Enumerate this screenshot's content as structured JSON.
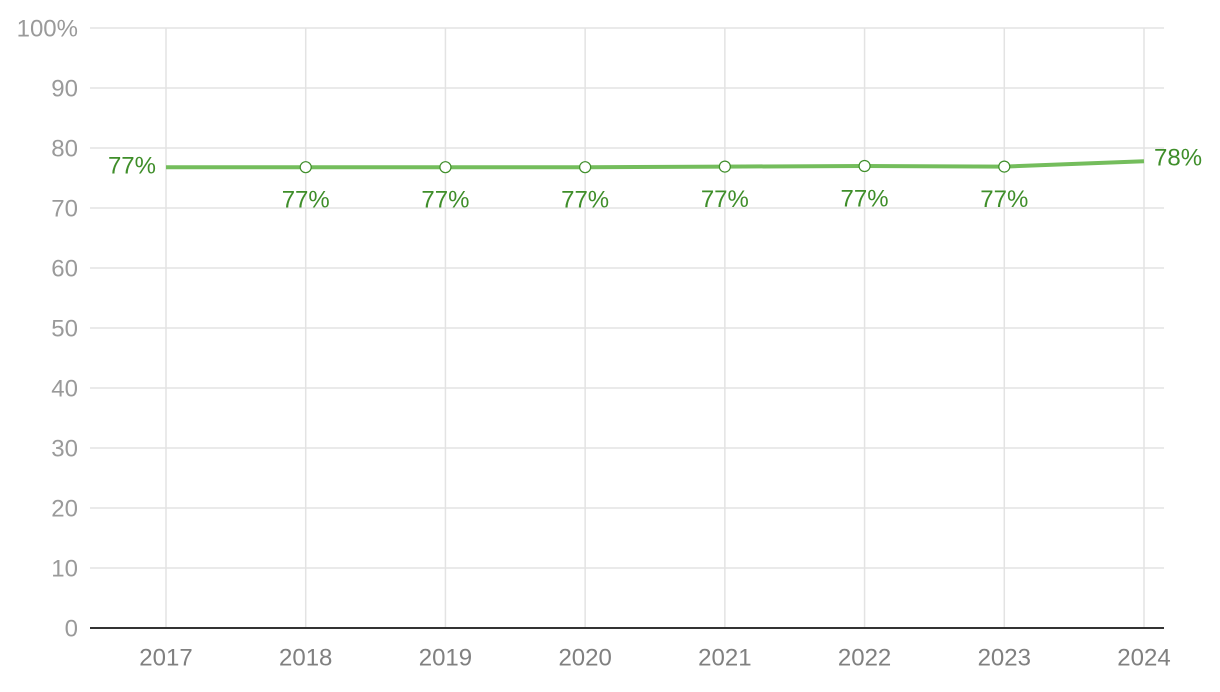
{
  "chart_data": {
    "type": "line",
    "categories": [
      "2017",
      "2018",
      "2019",
      "2020",
      "2021",
      "2022",
      "2023",
      "2024"
    ],
    "series": [
      {
        "color": "#74bd5c",
        "label_color": "#3f8e2a",
        "values": [
          76.8,
          76.8,
          76.8,
          76.8,
          76.9,
          77.0,
          76.9,
          77.8
        ],
        "value_labels": [
          "77%",
          "77%",
          "77%",
          "77%",
          "77%",
          "77%",
          "77%",
          "78%"
        ]
      }
    ],
    "ylim": [
      0,
      100
    ],
    "yticks": [
      0,
      10,
      20,
      30,
      40,
      50,
      60,
      70,
      80,
      90,
      {
        "value": 100,
        "label": "100%"
      }
    ],
    "grid": true
  }
}
